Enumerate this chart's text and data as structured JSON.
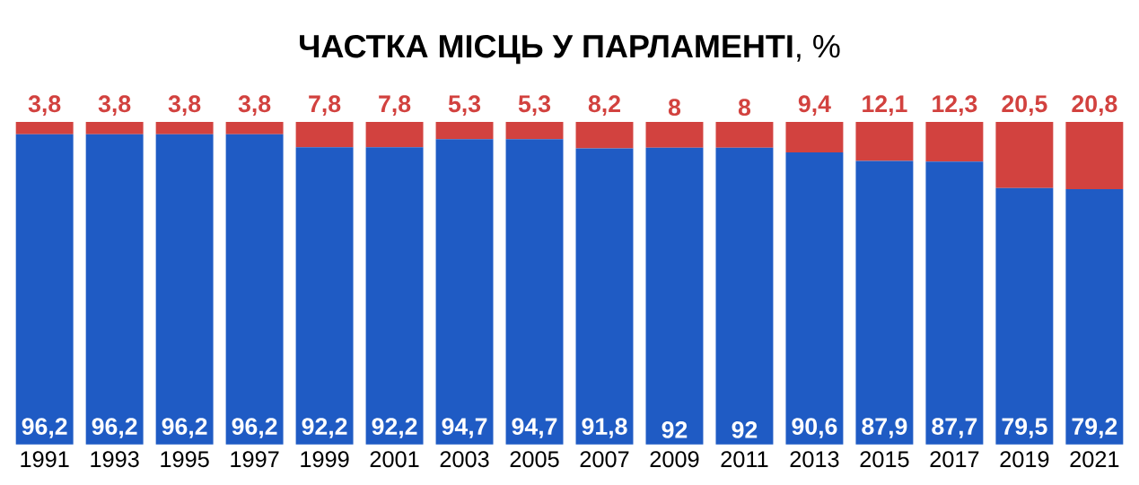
{
  "chart_data": {
    "type": "bar",
    "stacked": true,
    "title": "**ЧАСТКА МІСЦЬ У ПАРЛАМЕНТІ**, %",
    "categories": [
      "1991",
      "1993",
      "1995",
      "1997",
      "1999",
      "2001",
      "2003",
      "2005",
      "2007",
      "2009",
      "2011",
      "2013",
      "2015",
      "2017",
      "2019",
      "2021"
    ],
    "series": [
      {
        "color": "#1f5bc4",
        "values": [
          96.2,
          96.2,
          96.2,
          96.2,
          92.2,
          92.2,
          94.7,
          94.7,
          91.8,
          92,
          92,
          90.6,
          87.9,
          87.7,
          79.5,
          79.2
        ],
        "value_labels": [
          "96,2",
          "96,2",
          "96,2",
          "96,2",
          "92,2",
          "92,2",
          "94,7",
          "94,7",
          "91,8",
          "92",
          "92",
          "90,6",
          "87,9",
          "87,7",
          "79,5",
          "79,2"
        ]
      },
      {
        "color": "#d2423f",
        "values": [
          3.8,
          3.8,
          3.8,
          3.8,
          7.8,
          7.8,
          5.3,
          5.3,
          8.2,
          8,
          8,
          9.4,
          12.1,
          12.3,
          20.5,
          20.8
        ],
        "value_labels": [
          "3,8",
          "3,8",
          "3,8",
          "3,8",
          "7,8",
          "7,8",
          "5,3",
          "5,3",
          "8,2",
          "8",
          "8",
          "9,4",
          "12,1",
          "12,3",
          "20,5",
          "20,8"
        ]
      }
    ]
  }
}
